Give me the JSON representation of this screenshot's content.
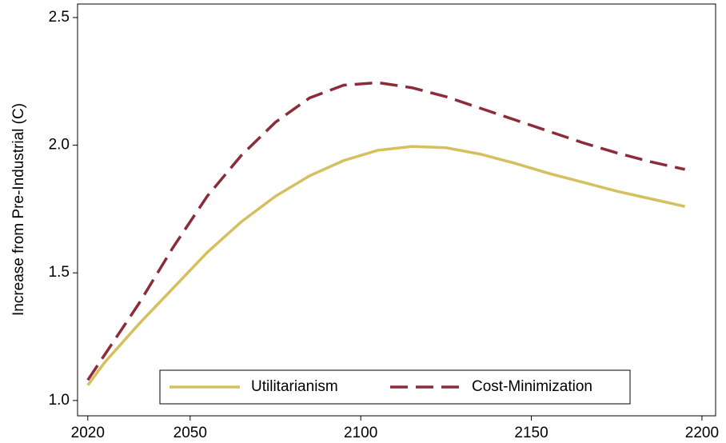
{
  "chart_data": {
    "type": "line",
    "y_label": "Increase from Pre-Industrial (C)",
    "x": [
      2020,
      2025,
      2035,
      2045,
      2055,
      2065,
      2075,
      2085,
      2095,
      2105,
      2115,
      2125,
      2135,
      2145,
      2155,
      2165,
      2175,
      2185,
      2195
    ],
    "series": [
      {
        "name": "Utilitarianism",
        "color": "#d6bf5e",
        "dash": "solid",
        "values": [
          1.06,
          1.15,
          1.3,
          1.44,
          1.58,
          1.7,
          1.8,
          1.88,
          1.94,
          1.98,
          1.995,
          1.99,
          1.965,
          1.93,
          1.89,
          1.855,
          1.82,
          1.79,
          1.76
        ]
      },
      {
        "name": "Cost-Minimization",
        "color": "#8b2c38",
        "dash": "dashed",
        "values": [
          1.08,
          1.18,
          1.38,
          1.6,
          1.8,
          1.96,
          2.09,
          2.185,
          2.235,
          2.245,
          2.225,
          2.19,
          2.145,
          2.1,
          2.055,
          2.01,
          1.97,
          1.935,
          1.905
        ]
      }
    ],
    "xlim": [
      2017,
      2204
    ],
    "ylim": [
      0.94,
      2.553
    ],
    "xticks": [
      2020,
      2050,
      2100,
      2150,
      2200
    ],
    "yticks": [
      {
        "value": 1,
        "label": "1.0"
      },
      2.5,
      1.5,
      {
        "value": 2,
        "label": "2.0"
      }
    ],
    "grid": false,
    "legend": "bottom"
  }
}
